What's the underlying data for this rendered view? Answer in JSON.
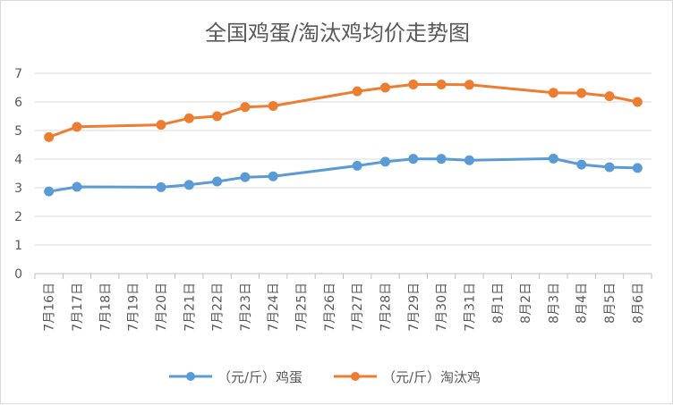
{
  "chart_data": {
    "type": "line",
    "title": "全国鸡蛋/淘汰鸡均价走势图",
    "xlabel": "",
    "ylabel": "",
    "ylim": [
      0,
      7
    ],
    "yticks": [
      "0",
      "1",
      "2",
      "3",
      "4",
      "5",
      "6",
      "7"
    ],
    "grid": true,
    "legend_position": "bottom",
    "categories": [
      "7月16日",
      "7月17日",
      "7月18日",
      "7月19日",
      "7月20日",
      "7月21日",
      "7月22日",
      "7月23日",
      "7月24日",
      "7月25日",
      "7月26日",
      "7月27日",
      "7月28日",
      "7月29日",
      "7月30日",
      "7月31日",
      "8月1日",
      "8月2日",
      "8月3日",
      "8月4日",
      "8月5日",
      "8月6日"
    ],
    "series": [
      {
        "name": "（元/斤）鸡蛋",
        "color": "#5b9bd5",
        "values": [
          2.87,
          3.03,
          null,
          null,
          3.02,
          3.1,
          3.22,
          3.37,
          3.4,
          null,
          null,
          3.77,
          3.91,
          4.01,
          4.01,
          3.96,
          null,
          null,
          4.02,
          3.81,
          3.72,
          3.69
        ]
      },
      {
        "name": "（元/斤）淘汰鸡",
        "color": "#ed7d31",
        "values": [
          4.77,
          5.13,
          null,
          null,
          5.2,
          5.43,
          5.5,
          5.82,
          5.86,
          null,
          null,
          6.37,
          6.5,
          6.61,
          6.61,
          6.6,
          null,
          null,
          6.32,
          6.31,
          6.2,
          6.0
        ]
      }
    ]
  }
}
